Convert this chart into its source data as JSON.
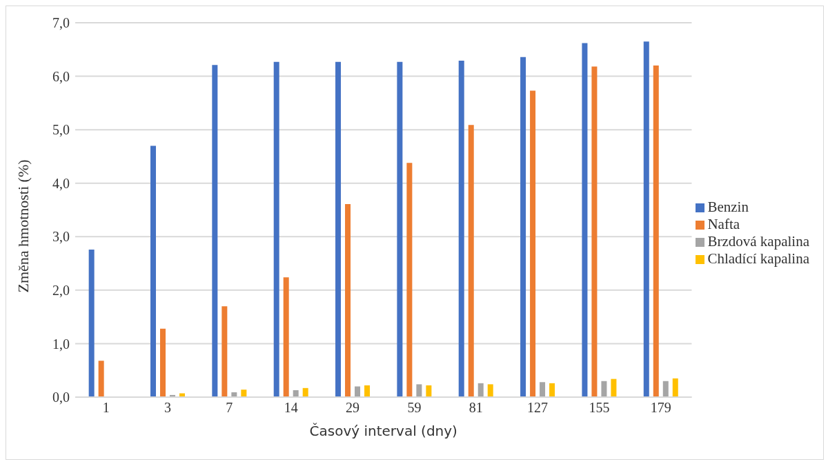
{
  "chart_data": {
    "type": "bar",
    "xlabel": "Časový interval (dny)",
    "ylabel": "Změna hmotnosti (%)",
    "categories": [
      "1",
      "3",
      "7",
      "14",
      "29",
      "59",
      "81",
      "127",
      "155",
      "179"
    ],
    "series": [
      {
        "name": "Benzin",
        "color": "#4472c4",
        "values": [
          2.76,
          4.7,
          6.21,
          6.27,
          6.27,
          6.27,
          6.29,
          6.36,
          6.62,
          6.65
        ]
      },
      {
        "name": "Nafta",
        "color": "#ed7d31",
        "values": [
          0.68,
          1.28,
          1.7,
          2.24,
          3.61,
          4.38,
          5.09,
          5.73,
          6.18,
          6.2
        ]
      },
      {
        "name": "Brzdová kapalina",
        "color": "#a5a5a5",
        "values": [
          0,
          0.04,
          0.09,
          0.13,
          0.2,
          0.24,
          0.26,
          0.28,
          0.3,
          0.3
        ]
      },
      {
        "name": "Chladící kapalina",
        "color": "#ffc000",
        "values": [
          0,
          0.07,
          0.14,
          0.17,
          0.22,
          0.22,
          0.24,
          0.26,
          0.34,
          0.35
        ]
      }
    ],
    "ylim": [
      0,
      7
    ],
    "yticks": [
      {
        "value": 0,
        "label": "0,0"
      },
      {
        "value": 1,
        "label": "1,0"
      },
      {
        "value": 2,
        "label": "2,0"
      },
      {
        "value": 3,
        "label": "3,0"
      },
      {
        "value": 4,
        "label": "4,0"
      },
      {
        "value": 5,
        "label": "5,0"
      },
      {
        "value": 6,
        "label": "6,0"
      },
      {
        "value": 7,
        "label": "7,0"
      }
    ],
    "grid": "y",
    "legend": "right"
  }
}
